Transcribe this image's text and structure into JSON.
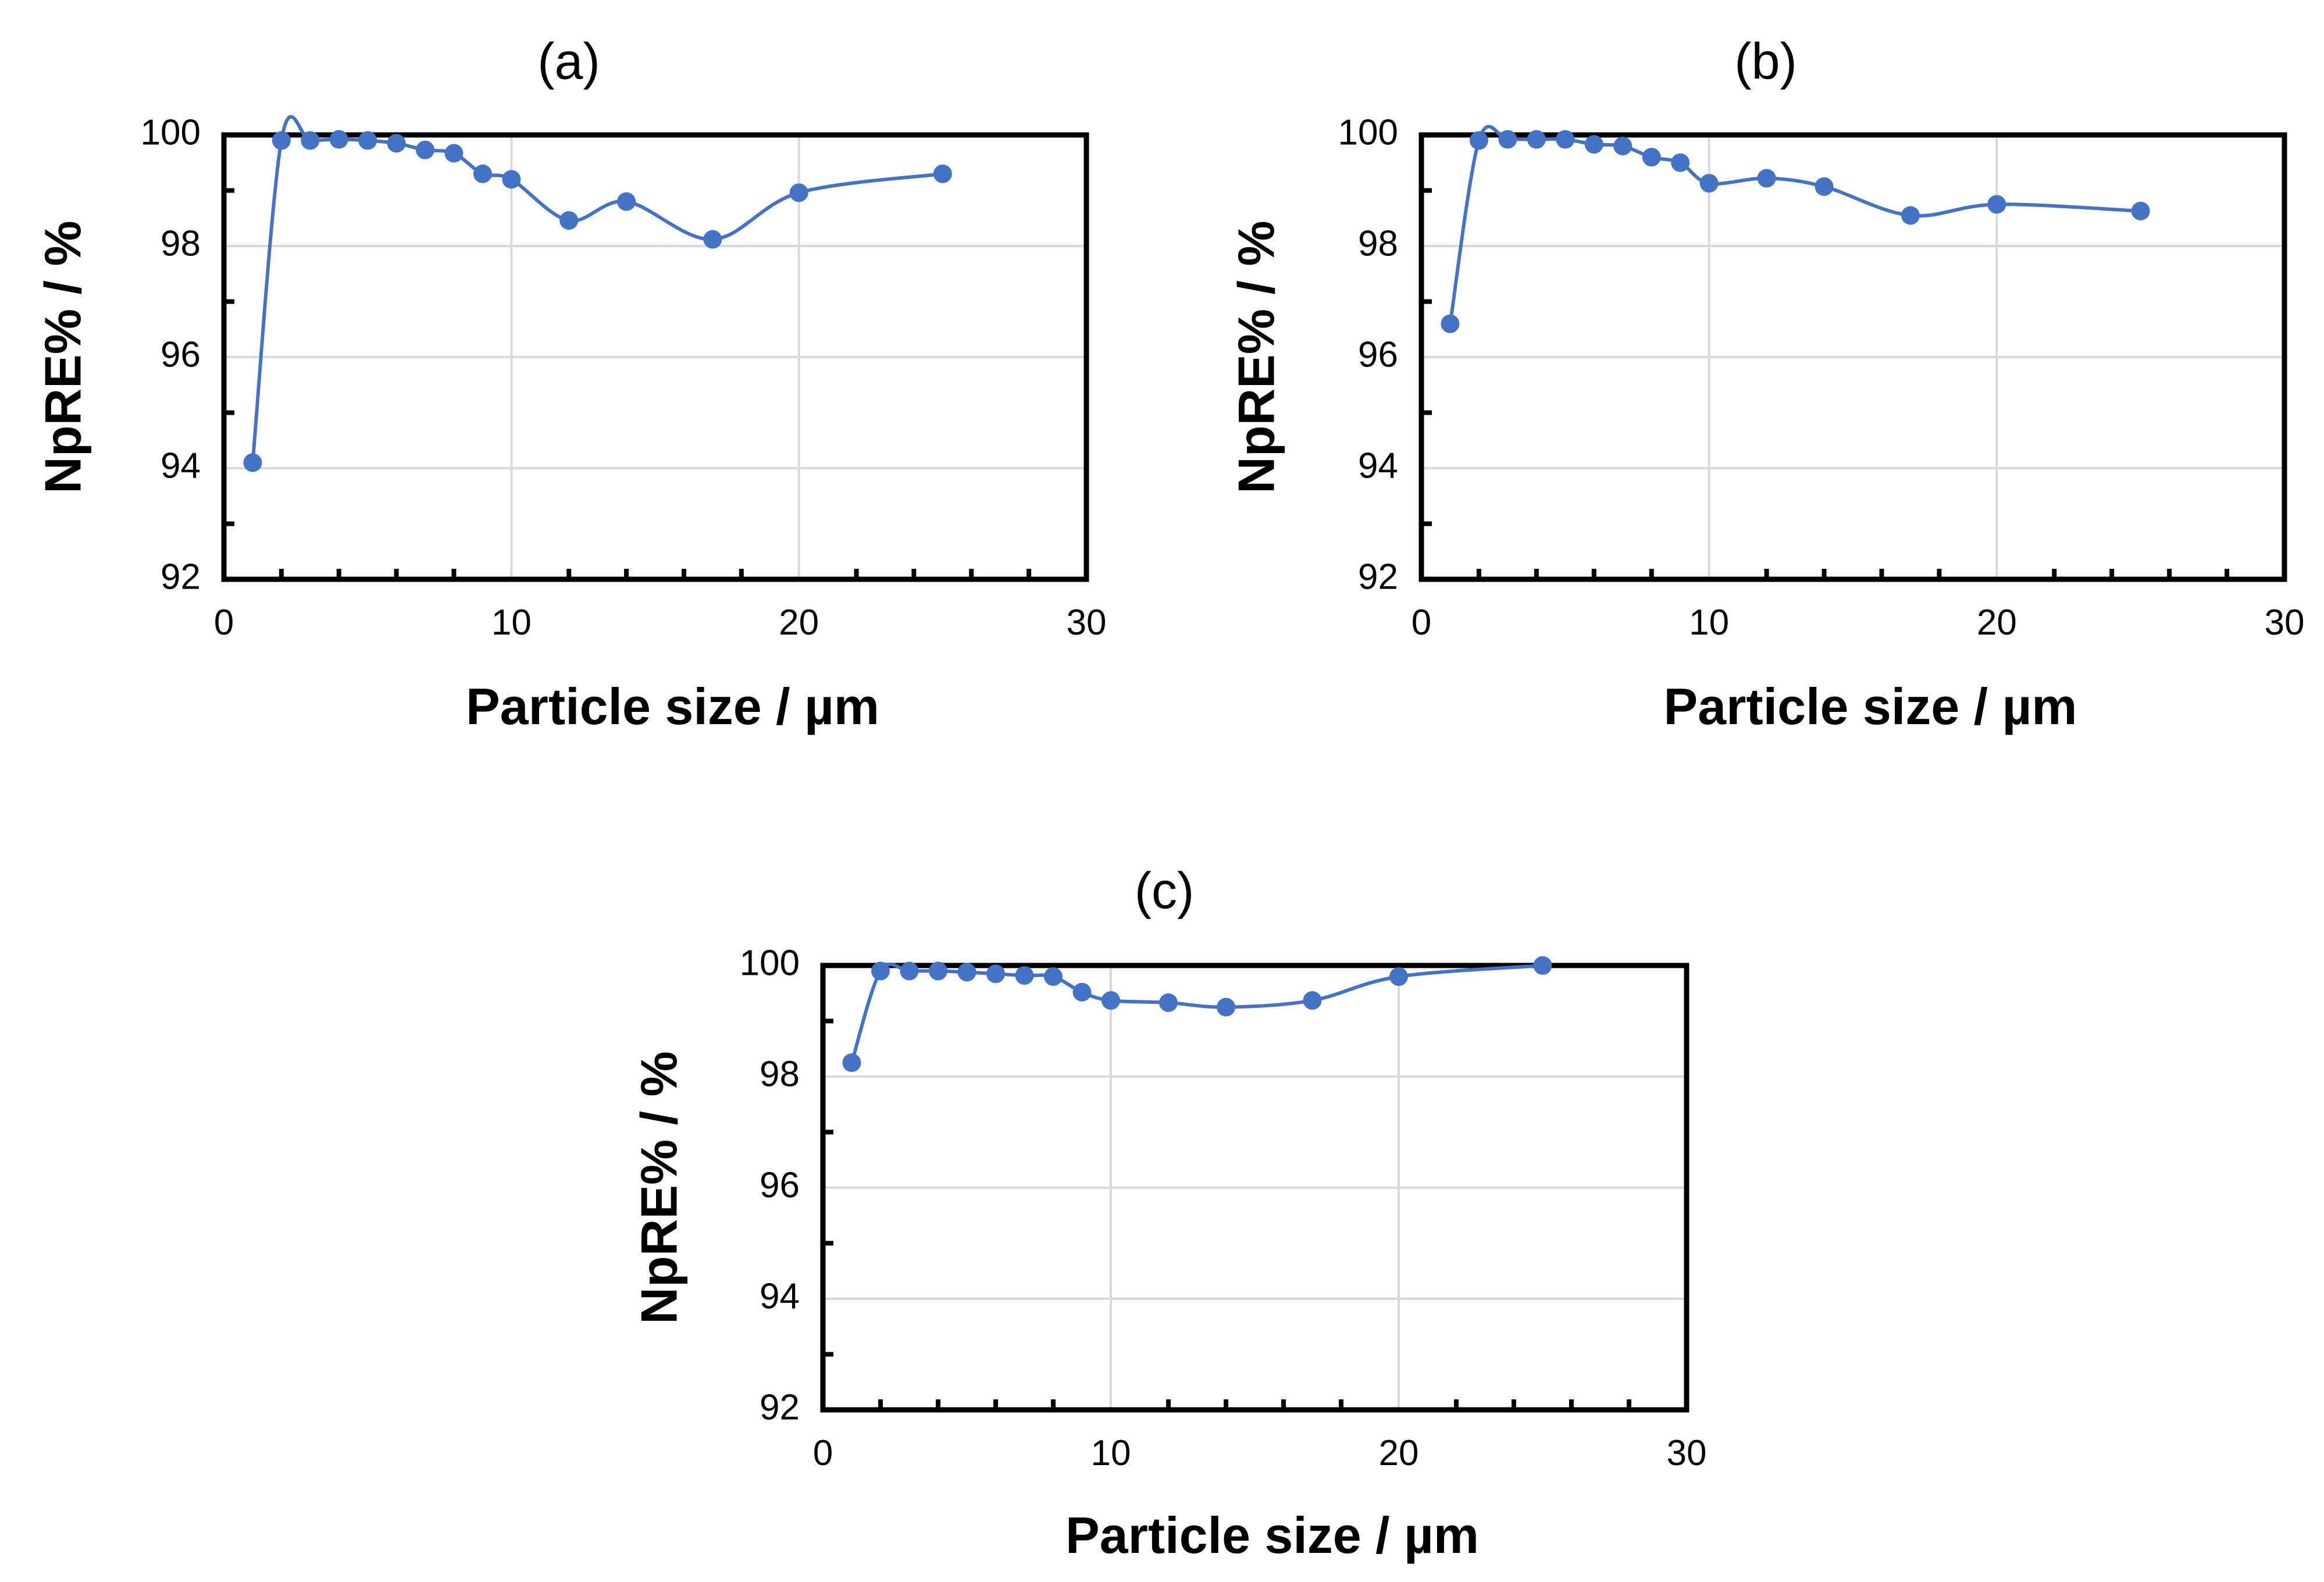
{
  "colors": {
    "series": "#4472C4",
    "grid": "#d9d9d9",
    "axis": "#000000"
  },
  "chart_data": [
    {
      "type": "line",
      "title": "(a)",
      "xlabel": "Particle size /  µm",
      "ylabel": "NpRE% / %",
      "xlim": [
        0,
        30
      ],
      "ylim": [
        92,
        100
      ],
      "xticks": [
        "0",
        "10",
        "20",
        "30"
      ],
      "yticks": [
        "92",
        "94",
        "96",
        "98",
        "100"
      ],
      "grid": true,
      "legend": "none",
      "series": [
        {
          "x": [
            1,
            2,
            3,
            4,
            5,
            6,
            7,
            8,
            9,
            10,
            12,
            14,
            17,
            20,
            25
          ],
          "y": [
            94.1,
            99.9,
            99.9,
            99.92,
            99.9,
            99.85,
            99.73,
            99.67,
            99.3,
            99.2,
            98.46,
            98.8,
            98.12,
            98.96,
            99.3
          ]
        }
      ]
    },
    {
      "type": "line",
      "title": "(b)",
      "xlabel": "Particle size / µm",
      "ylabel": "NpRE% / %",
      "xlim": [
        0,
        30
      ],
      "ylim": [
        92,
        100
      ],
      "xticks": [
        "0",
        "10",
        "20",
        "30"
      ],
      "yticks": [
        "92",
        "94",
        "96",
        "98",
        "100"
      ],
      "grid": true,
      "legend": "none",
      "series": [
        {
          "x": [
            1,
            2,
            3,
            4,
            5,
            6,
            7,
            8,
            9,
            10,
            12,
            14,
            17,
            20,
            25
          ],
          "y": [
            96.6,
            99.9,
            99.92,
            99.92,
            99.92,
            99.83,
            99.8,
            99.6,
            99.5,
            99.13,
            99.22,
            99.07,
            98.55,
            98.75,
            98.63
          ]
        }
      ]
    },
    {
      "type": "line",
      "title": "(c)",
      "xlabel": "Particle size / µm",
      "ylabel": "NpRE% / %",
      "xlim": [
        0,
        30
      ],
      "ylim": [
        92,
        100
      ],
      "xticks": [
        "0",
        "10",
        "20",
        "30"
      ],
      "yticks": [
        "92",
        "94",
        "96",
        "98",
        "100"
      ],
      "grid": true,
      "legend": "none",
      "series": [
        {
          "x": [
            1,
            2,
            3,
            4,
            5,
            6,
            7,
            8,
            9,
            10,
            12,
            14,
            17,
            20,
            25
          ],
          "y": [
            98.25,
            99.9,
            99.9,
            99.9,
            99.88,
            99.85,
            99.82,
            99.8,
            99.52,
            99.37,
            99.33,
            99.25,
            99.37,
            99.8,
            100
          ]
        }
      ]
    }
  ]
}
